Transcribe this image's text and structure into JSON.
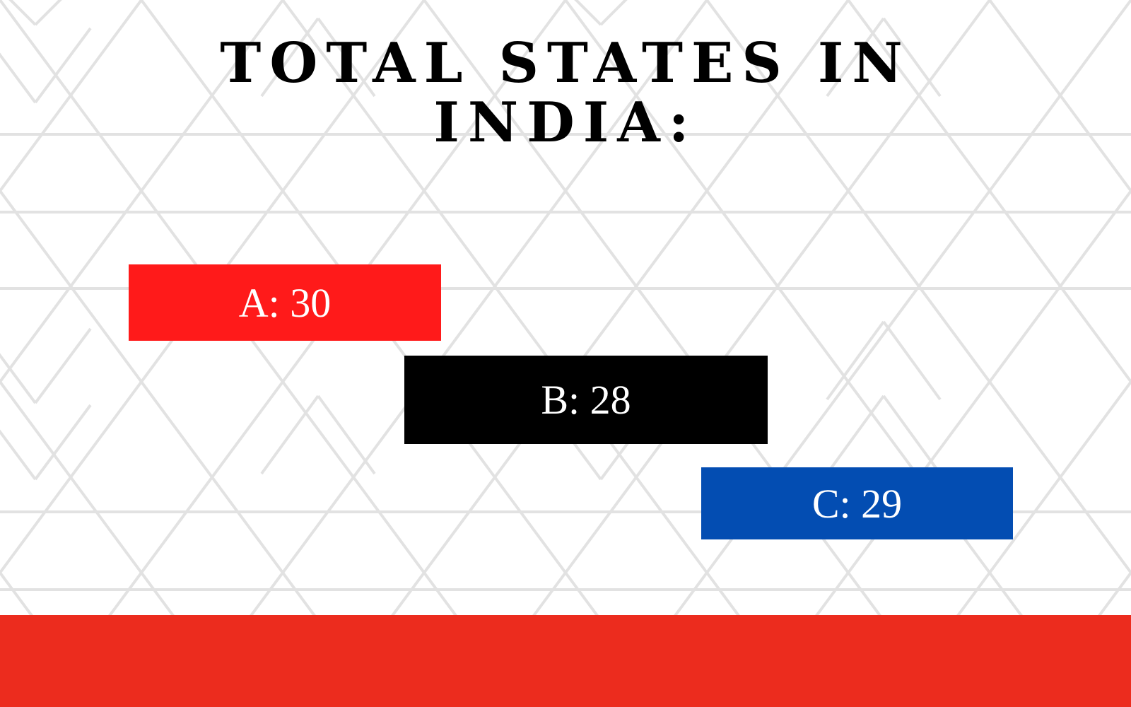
{
  "quiz": {
    "title": "TOTAL STATES IN INDIA:",
    "options": [
      {
        "text": "A: 30",
        "color": "#ff1a1a"
      },
      {
        "text": "B: 28",
        "color": "#000000"
      },
      {
        "text": "C: 29",
        "color": "#034db2"
      }
    ]
  },
  "theme": {
    "pattern_line_color": "#e2e2e2",
    "footer_color": "#ec2c1e"
  }
}
